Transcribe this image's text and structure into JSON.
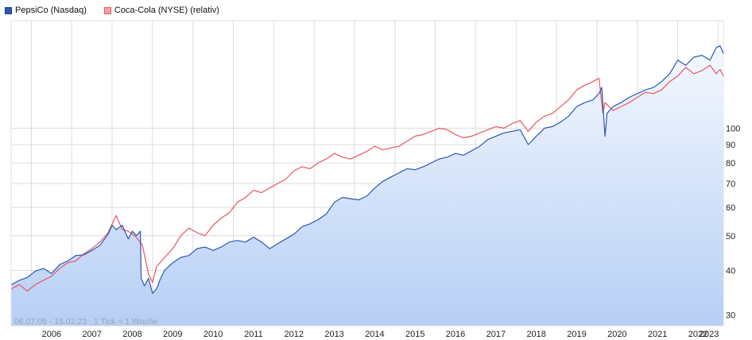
{
  "legend": {
    "series1": "PepsiCo (Nasdaq)",
    "series2": "Coca-Cola (NYSE) (relativ)"
  },
  "footnote": "06.07.05 - 15.02.23   1 Tick = 1 Woche",
  "colors": {
    "pepsi": "#2a57b5",
    "coke": "#e8585d",
    "area_top": "#f4f8fe",
    "area_bottom": "#b7cff5",
    "grid": "#dcdcdc"
  },
  "chart_data": {
    "type": "line",
    "scale": "log",
    "ylim": [
      28,
      200
    ],
    "xlim": [
      2005.5,
      2023.13
    ],
    "y_ticks": [
      30,
      40,
      50,
      60,
      70,
      80,
      90,
      100
    ],
    "x_ticks": [
      "2006",
      "2007",
      "2008",
      "2009",
      "2010",
      "2011",
      "2012",
      "2013",
      "2014",
      "2015",
      "2016",
      "2017",
      "2018",
      "2019",
      "2020",
      "2021",
      "2022",
      "2023"
    ],
    "series": [
      {
        "name": "PepsiCo (Nasdaq)",
        "color": "#2a57b5",
        "area": true,
        "x": [
          2005.51,
          2005.7,
          2005.9,
          2006.1,
          2006.3,
          2006.5,
          2006.7,
          2006.9,
          2007.1,
          2007.3,
          2007.5,
          2007.7,
          2007.9,
          2008.0,
          2008.1,
          2008.25,
          2008.4,
          2008.5,
          2008.6,
          2008.7,
          2008.72,
          2008.8,
          2008.9,
          2009.0,
          2009.1,
          2009.2,
          2009.3,
          2009.5,
          2009.7,
          2009.9,
          2010.1,
          2010.3,
          2010.5,
          2010.7,
          2010.9,
          2011.1,
          2011.3,
          2011.5,
          2011.7,
          2011.9,
          2012.1,
          2012.3,
          2012.5,
          2012.7,
          2012.9,
          2013.1,
          2013.3,
          2013.5,
          2013.7,
          2013.9,
          2014.1,
          2014.3,
          2014.5,
          2014.7,
          2014.9,
          2015.1,
          2015.3,
          2015.5,
          2015.7,
          2015.9,
          2016.1,
          2016.3,
          2016.5,
          2016.7,
          2016.9,
          2017.1,
          2017.3,
          2017.5,
          2017.7,
          2017.9,
          2018.1,
          2018.3,
          2018.5,
          2018.7,
          2018.9,
          2019.1,
          2019.3,
          2019.5,
          2019.7,
          2019.9,
          2020.05,
          2020.12,
          2020.2,
          2020.25,
          2020.4,
          2020.6,
          2020.8,
          2021.0,
          2021.2,
          2021.4,
          2021.6,
          2021.8,
          2022.0,
          2022.2,
          2022.4,
          2022.6,
          2022.8,
          2022.95,
          2023.05,
          2023.13
        ],
        "y": [
          36.5,
          37.5,
          38.2,
          39.8,
          40.5,
          39.2,
          41.5,
          42.5,
          44.0,
          44.2,
          45.5,
          47.0,
          50.5,
          53.5,
          52.0,
          53.5,
          49.0,
          51.5,
          50.0,
          51.5,
          38.0,
          36.2,
          38.0,
          34.5,
          35.5,
          38.0,
          40.0,
          42.0,
          43.5,
          44.0,
          46.0,
          46.5,
          45.5,
          46.5,
          48.0,
          48.5,
          48.0,
          49.5,
          48.0,
          46.0,
          47.5,
          49.0,
          50.5,
          53.0,
          54.0,
          55.5,
          57.5,
          62.0,
          64.0,
          63.5,
          63.0,
          64.5,
          68.0,
          71.0,
          73.0,
          75.0,
          77.0,
          76.5,
          78.0,
          80.0,
          82.0,
          83.0,
          85.0,
          84.0,
          86.5,
          89.0,
          93.0,
          95.0,
          97.0,
          98.0,
          99.0,
          90.0,
          95.0,
          100.0,
          101.0,
          104.0,
          108.0,
          115.0,
          118.0,
          120.0,
          125.0,
          130.0,
          95.0,
          110.0,
          115.0,
          118.0,
          122.0,
          125.0,
          128.0,
          130.0,
          135.0,
          142.0,
          155.0,
          150.0,
          158.0,
          160.0,
          155.0,
          168.0,
          170.0,
          162.0
        ]
      },
      {
        "name": "Coca-Cola (NYSE) (relativ)",
        "color": "#e8585d",
        "area": false,
        "x": [
          2005.51,
          2005.7,
          2005.9,
          2006.1,
          2006.3,
          2006.5,
          2006.7,
          2006.9,
          2007.1,
          2007.3,
          2007.5,
          2007.7,
          2007.9,
          2008.0,
          2008.1,
          2008.25,
          2008.4,
          2008.6,
          2008.75,
          2008.9,
          2009.0,
          2009.1,
          2009.3,
          2009.5,
          2009.7,
          2009.9,
          2010.1,
          2010.3,
          2010.5,
          2010.7,
          2010.9,
          2011.1,
          2011.3,
          2011.5,
          2011.7,
          2011.9,
          2012.1,
          2012.3,
          2012.5,
          2012.7,
          2012.9,
          2013.1,
          2013.3,
          2013.5,
          2013.7,
          2013.9,
          2014.1,
          2014.3,
          2014.5,
          2014.7,
          2014.9,
          2015.1,
          2015.3,
          2015.5,
          2015.7,
          2015.9,
          2016.1,
          2016.3,
          2016.5,
          2016.7,
          2016.9,
          2017.1,
          2017.3,
          2017.5,
          2017.7,
          2017.9,
          2018.1,
          2018.3,
          2018.5,
          2018.7,
          2018.9,
          2019.1,
          2019.3,
          2019.5,
          2019.7,
          2019.9,
          2020.05,
          2020.15,
          2020.2,
          2020.4,
          2020.6,
          2020.8,
          2021.0,
          2021.2,
          2021.4,
          2021.6,
          2021.8,
          2022.0,
          2022.2,
          2022.4,
          2022.6,
          2022.8,
          2022.95,
          2023.05,
          2023.13
        ],
        "y": [
          35.5,
          36.5,
          35.0,
          36.5,
          37.5,
          38.5,
          40.5,
          42.0,
          42.5,
          44.5,
          46.0,
          48.0,
          51.0,
          54.0,
          57.0,
          52.0,
          51.5,
          49.5,
          47.0,
          39.0,
          37.0,
          41.0,
          43.5,
          46.0,
          50.0,
          52.5,
          51.0,
          50.0,
          53.5,
          56.0,
          58.0,
          62.0,
          64.0,
          67.0,
          66.0,
          68.0,
          70.0,
          72.0,
          76.0,
          78.0,
          77.0,
          80.0,
          82.0,
          85.0,
          83.0,
          82.0,
          84.0,
          86.0,
          89.0,
          87.0,
          88.0,
          89.0,
          92.0,
          95.0,
          96.0,
          98.0,
          100.0,
          99.0,
          96.0,
          94.0,
          95.0,
          97.0,
          99.0,
          101.0,
          100.0,
          103.0,
          105.0,
          98.0,
          104.0,
          108.0,
          110.0,
          115.0,
          120.0,
          128.0,
          132.0,
          135.0,
          138.0,
          110.0,
          118.0,
          112.0,
          115.0,
          118.0,
          122.0,
          126.0,
          125.0,
          128.0,
          135.0,
          140.0,
          148.0,
          142.0,
          145.0,
          150.0,
          142.0,
          146.0,
          140.0
        ]
      }
    ]
  }
}
